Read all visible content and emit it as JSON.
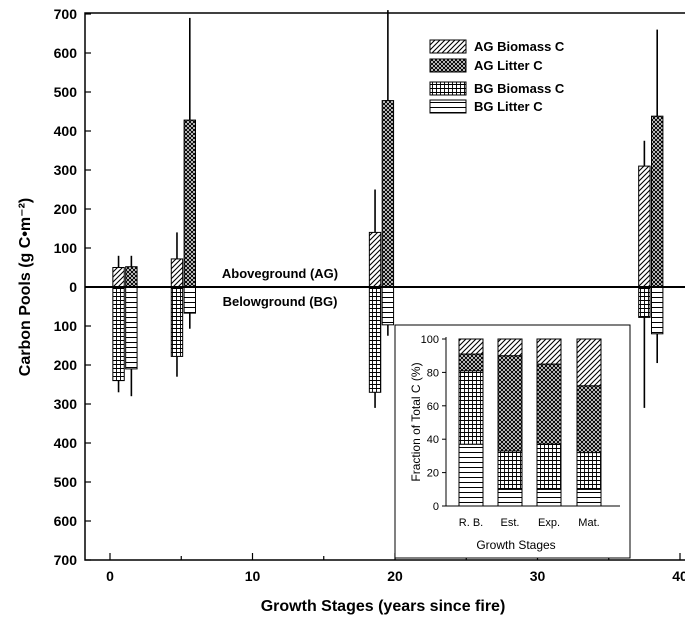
{
  "chart_data": [
    {
      "type": "bar",
      "subtype": "stacked-bidirectional-with-error-bars",
      "xlabel": "Growth Stages (years since fire)",
      "ylabel": "Carbon Pools (g C•m⁻²)",
      "xlim": [
        -3,
        40
      ],
      "ylim": [
        -700,
        700
      ],
      "x_ticks": [
        0,
        10,
        20,
        30,
        40
      ],
      "x_tick_labels": [
        "0",
        "10",
        "20",
        "30",
        "40"
      ],
      "y_ticks": [
        700,
        600,
        500,
        400,
        300,
        200,
        100,
        0,
        -100,
        -200,
        -300,
        -400,
        -500,
        -600,
        -700
      ],
      "y_tick_labels": [
        "700",
        "600",
        "500",
        "400",
        "300",
        "200",
        "100",
        "0",
        "100",
        "200",
        "300",
        "400",
        "500",
        "600",
        "700"
      ],
      "annotations": {
        "aboveground": "Aboveground (AG)",
        "belowground": "Belowground (BG)"
      },
      "legend_position": "top-right",
      "series": [
        {
          "name": "AG Biomass C",
          "pattern": "diagonal-hatch",
          "side": "above",
          "x": [
            0.6,
            4.7,
            18.6,
            37.5
          ],
          "values": [
            50,
            72,
            140,
            310
          ],
          "error_top": [
            80,
            140,
            250,
            375
          ]
        },
        {
          "name": "AG Litter C",
          "pattern": "crosshatch",
          "side": "above",
          "x": [
            1.5,
            5.6,
            19.5,
            38.4
          ],
          "values": [
            52,
            428,
            478,
            438
          ],
          "error_top": [
            80,
            690,
            710,
            660
          ]
        },
        {
          "name": "BG Biomass C",
          "pattern": "grid",
          "side": "below",
          "x": [
            0.6,
            4.7,
            18.6,
            37.5
          ],
          "values": [
            -240,
            -178,
            -270,
            -78
          ],
          "error_bottom": [
            -270,
            -230,
            -310,
            -310
          ]
        },
        {
          "name": "BG Litter C",
          "pattern": "horizontal-lines",
          "side": "below",
          "x": [
            1.5,
            5.6,
            19.5,
            38.4
          ],
          "values": [
            -210,
            -67,
            -97,
            -120
          ],
          "error_bottom": [
            -280,
            -107,
            -125,
            -195
          ]
        }
      ],
      "bar_width": 0.8
    },
    {
      "type": "bar",
      "subtype": "stacked-100-percent",
      "title": "",
      "xlabel": "Growth Stages",
      "ylabel": "Fraction of Total C (%)",
      "categories": [
        "R. B.",
        "Est.",
        "Exp.",
        "Mat."
      ],
      "ylim": [
        0,
        100
      ],
      "y_ticks": [
        0,
        20,
        40,
        60,
        80,
        100
      ],
      "series": [
        {
          "name": "BG Litter C",
          "pattern": "horizontal-lines",
          "values": [
            37,
            10,
            10,
            10
          ]
        },
        {
          "name": "BG Biomass C",
          "pattern": "grid",
          "values": [
            44,
            23,
            27,
            22
          ]
        },
        {
          "name": "AG Litter C",
          "pattern": "crosshatch",
          "values": [
            10,
            57,
            48,
            40
          ]
        },
        {
          "name": "AG Biomass C",
          "pattern": "diagonal-hatch",
          "values": [
            9,
            10,
            15,
            28
          ]
        }
      ]
    }
  ]
}
